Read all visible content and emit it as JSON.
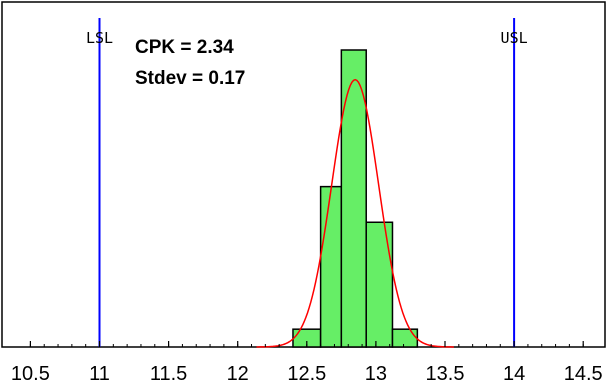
{
  "chart_data": {
    "type": "bar",
    "title": "",
    "xlabel": "",
    "ylabel": "",
    "xlim": [
      10.4,
      14.55
    ],
    "ylim": [
      0,
      100
    ],
    "x_ticks": [
      "10.5",
      "11",
      "11.5",
      "12",
      "12.5",
      "13",
      "13.5",
      "14",
      "14.5"
    ],
    "bins": [
      {
        "start": 12.4,
        "end": 12.6,
        "value": 6
      },
      {
        "start": 12.6,
        "end": 12.75,
        "value": 54
      },
      {
        "start": 12.75,
        "end": 12.93,
        "value": 100
      },
      {
        "start": 12.93,
        "end": 13.12,
        "value": 42
      },
      {
        "start": 13.12,
        "end": 13.3,
        "value": 6
      }
    ],
    "fit_curve": {
      "mean": 12.85,
      "stdev": 0.17,
      "peak": 90,
      "color": "#ff0000"
    },
    "spec_limits": [
      {
        "label": "LSL",
        "value": 11.0,
        "color": "#0000ff"
      },
      {
        "label": "USL",
        "value": 14.0,
        "color": "#0000ff"
      }
    ],
    "annotations": [
      "CPK = 2.34",
      "Stdev = 0.17"
    ],
    "bar_color": "#66ee66",
    "grid": false
  }
}
